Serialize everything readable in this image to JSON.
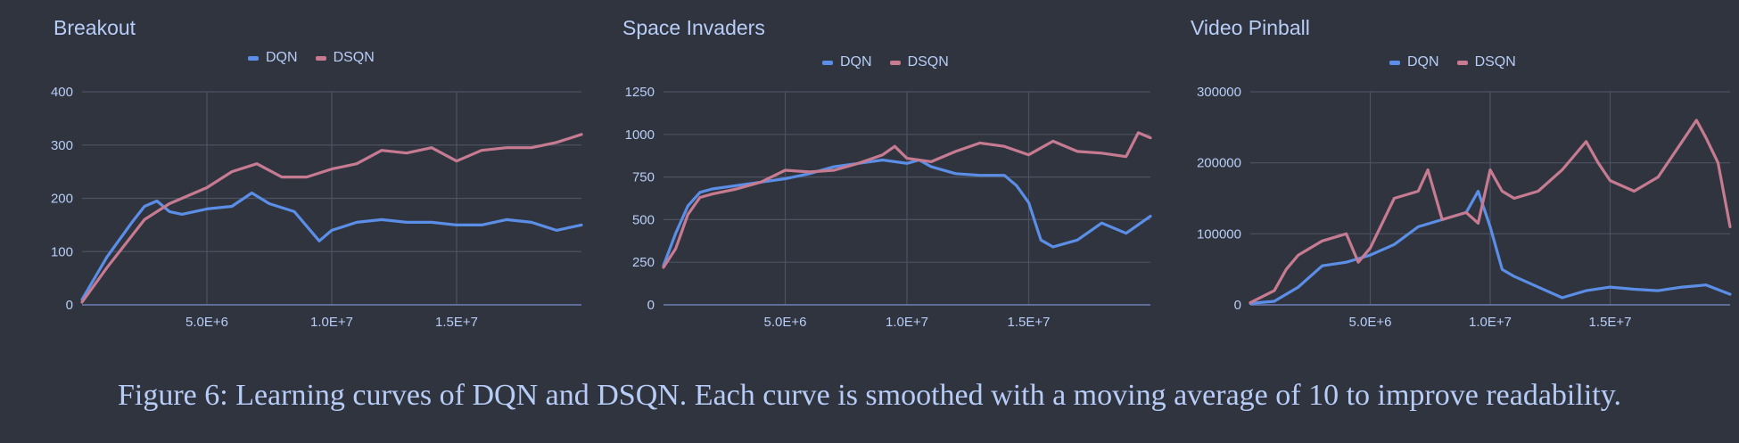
{
  "caption": "Figure 6:  Learning curves of DQN and DSQN. Each curve is smoothed with a moving average of 10 to improve readability.",
  "colors": {
    "DQN": "#5b8ee6",
    "DSQN": "#c67b91",
    "grid": "#4c5261",
    "text": "#b7cdf7",
    "background": "#30343f"
  },
  "chart_data": [
    {
      "type": "line",
      "title": "Breakout",
      "legend": [
        "DQN",
        "DSQN"
      ],
      "legend_position": "top",
      "grid": true,
      "xlim": [
        0,
        20000000
      ],
      "ylim": [
        0,
        400
      ],
      "yticks": [
        0,
        100,
        200,
        300,
        400
      ],
      "ytick_labels": [
        "0",
        "100",
        "200",
        "300",
        "400"
      ],
      "xticks": [
        5000000,
        10000000,
        15000000
      ],
      "xtick_labels": [
        "5.0E+6",
        "1.0E+7",
        "1.5E+7"
      ],
      "series": [
        {
          "name": "DQN",
          "x": [
            0,
            1000000,
            2000000,
            2500000,
            3000000,
            3500000,
            4000000,
            5000000,
            6000000,
            6800000,
            7500000,
            8500000,
            9500000,
            10000000,
            11000000,
            12000000,
            13000000,
            14000000,
            15000000,
            16000000,
            17000000,
            18000000,
            19000000,
            20000000
          ],
          "y": [
            10,
            90,
            155,
            185,
            195,
            175,
            170,
            180,
            185,
            210,
            190,
            175,
            120,
            140,
            155,
            160,
            155,
            155,
            150,
            150,
            160,
            155,
            140,
            150
          ]
        },
        {
          "name": "DSQN",
          "x": [
            0,
            1000000,
            2000000,
            2500000,
            3000000,
            3500000,
            4000000,
            5000000,
            6000000,
            7000000,
            8000000,
            9000000,
            10000000,
            11000000,
            12000000,
            13000000,
            14000000,
            15000000,
            16000000,
            17000000,
            18000000,
            19000000,
            20000000
          ],
          "y": [
            5,
            70,
            130,
            160,
            175,
            190,
            200,
            220,
            250,
            265,
            240,
            240,
            255,
            265,
            290,
            285,
            295,
            270,
            290,
            295,
            295,
            305,
            320
          ]
        }
      ]
    },
    {
      "type": "line",
      "title": "Space Invaders",
      "legend": [
        "DQN",
        "DSQN"
      ],
      "legend_position": "top",
      "grid": true,
      "xlim": [
        0,
        20000000
      ],
      "ylim": [
        0,
        1250
      ],
      "yticks": [
        0,
        250,
        500,
        750,
        1000,
        1250
      ],
      "ytick_labels": [
        "0",
        "250",
        "500",
        "750",
        "1000",
        "1250"
      ],
      "xticks": [
        5000000,
        10000000,
        15000000
      ],
      "xtick_labels": [
        "5.0E+6",
        "1.0E+7",
        "1.5E+7"
      ],
      "series": [
        {
          "name": "DQN",
          "x": [
            0,
            500000,
            1000000,
            1500000,
            2000000,
            3000000,
            4000000,
            5000000,
            6000000,
            7000000,
            8000000,
            9000000,
            10000000,
            10500000,
            11000000,
            12000000,
            13000000,
            14000000,
            14500000,
            15000000,
            15500000,
            16000000,
            17000000,
            18000000,
            19000000,
            20000000
          ],
          "y": [
            230,
            420,
            580,
            660,
            680,
            700,
            720,
            740,
            770,
            810,
            830,
            850,
            830,
            850,
            810,
            770,
            760,
            760,
            700,
            600,
            380,
            340,
            380,
            480,
            420,
            520
          ]
        },
        {
          "name": "DSQN",
          "x": [
            0,
            500000,
            1000000,
            1500000,
            2000000,
            3000000,
            4000000,
            5000000,
            6000000,
            7000000,
            8000000,
            9000000,
            9500000,
            10000000,
            11000000,
            12000000,
            13000000,
            14000000,
            15000000,
            16000000,
            17000000,
            18000000,
            19000000,
            19500000,
            20000000
          ],
          "y": [
            220,
            330,
            530,
            630,
            650,
            680,
            720,
            790,
            780,
            790,
            830,
            880,
            930,
            860,
            840,
            900,
            950,
            930,
            880,
            960,
            900,
            890,
            870,
            1010,
            980
          ]
        }
      ]
    },
    {
      "type": "line",
      "title": "Video Pinball",
      "legend": [
        "DQN",
        "DSQN"
      ],
      "legend_position": "top",
      "grid": true,
      "xlim": [
        0,
        20000000
      ],
      "ylim": [
        0,
        300000
      ],
      "yticks": [
        0,
        100000,
        200000,
        300000
      ],
      "ytick_labels": [
        "0",
        "100000",
        "200000",
        "300000"
      ],
      "xticks": [
        5000000,
        10000000,
        15000000
      ],
      "xtick_labels": [
        "5.0E+6",
        "1.0E+7",
        "1.5E+7"
      ],
      "series": [
        {
          "name": "DQN",
          "x": [
            0,
            1000000,
            2000000,
            3000000,
            4000000,
            5000000,
            6000000,
            7000000,
            8000000,
            9000000,
            9500000,
            10000000,
            10500000,
            11000000,
            12000000,
            13000000,
            14000000,
            15000000,
            16000000,
            17000000,
            18000000,
            19000000,
            20000000
          ],
          "y": [
            2000,
            5000,
            25000,
            55000,
            60000,
            70000,
            85000,
            110000,
            120000,
            130000,
            160000,
            110000,
            50000,
            40000,
            25000,
            10000,
            20000,
            25000,
            22000,
            20000,
            25000,
            28000,
            15000
          ]
        },
        {
          "name": "DSQN",
          "x": [
            0,
            1000000,
            1500000,
            2000000,
            3000000,
            4000000,
            4500000,
            5000000,
            6000000,
            7000000,
            7400000,
            8000000,
            9000000,
            9500000,
            10000000,
            10500000,
            11000000,
            12000000,
            13000000,
            14000000,
            14500000,
            15000000,
            16000000,
            17000000,
            18000000,
            18600000,
            19000000,
            19500000,
            20000000
          ],
          "y": [
            3000,
            20000,
            50000,
            70000,
            90000,
            100000,
            60000,
            80000,
            150000,
            160000,
            190000,
            120000,
            130000,
            115000,
            190000,
            160000,
            150000,
            160000,
            190000,
            230000,
            200000,
            175000,
            160000,
            180000,
            230000,
            260000,
            235000,
            200000,
            110000
          ]
        }
      ]
    }
  ]
}
